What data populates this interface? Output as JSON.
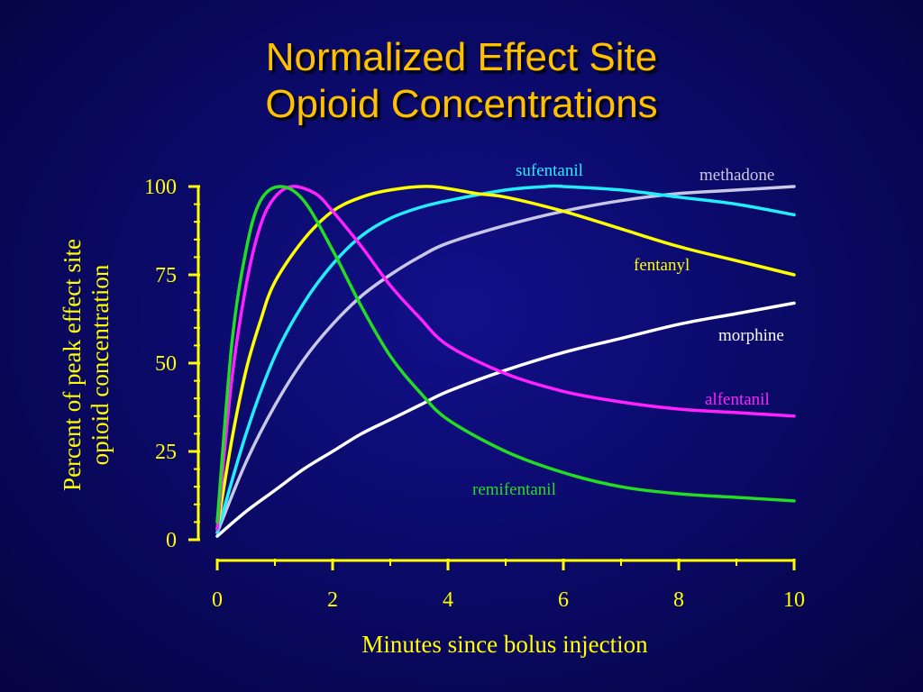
{
  "title_line1": "Normalized Effect Site",
  "title_line2": "Opioid Concentrations",
  "chart_data": {
    "type": "line",
    "title": "Normalized Effect Site Opioid Concentrations",
    "xlabel": "Minutes since bolus injection",
    "ylabel_line1": "Percent of peak effect site",
    "ylabel_line2": "opioid concentration",
    "xlim": [
      0,
      10
    ],
    "ylim": [
      0,
      100
    ],
    "x_ticks": [
      "0",
      "2",
      "4",
      "6",
      "8",
      "10"
    ],
    "y_ticks": [
      "0",
      "25",
      "50",
      "75",
      "100"
    ],
    "grid": false,
    "legend": "inline labels",
    "series": [
      {
        "name": "remifentanil",
        "color": "#22dd22",
        "points": [
          [
            0,
            5
          ],
          [
            0.25,
            55
          ],
          [
            0.5,
            82
          ],
          [
            0.75,
            96
          ],
          [
            1.1,
            100
          ],
          [
            1.5,
            96
          ],
          [
            2,
            82
          ],
          [
            2.5,
            66
          ],
          [
            3,
            52
          ],
          [
            3.5,
            42
          ],
          [
            4,
            34
          ],
          [
            5,
            25
          ],
          [
            6,
            19
          ],
          [
            7,
            15
          ],
          [
            8,
            13
          ],
          [
            9,
            12
          ],
          [
            10,
            11
          ]
        ]
      },
      {
        "name": "alfentanil",
        "color": "#ff22ff",
        "points": [
          [
            0,
            3
          ],
          [
            0.25,
            45
          ],
          [
            0.5,
            72
          ],
          [
            0.75,
            89
          ],
          [
            1,
            97
          ],
          [
            1.3,
            100
          ],
          [
            1.7,
            98
          ],
          [
            2,
            93
          ],
          [
            2.5,
            83
          ],
          [
            3,
            72
          ],
          [
            3.5,
            63
          ],
          [
            4,
            55
          ],
          [
            5,
            47
          ],
          [
            6,
            42
          ],
          [
            7,
            39
          ],
          [
            8,
            37
          ],
          [
            9,
            36
          ],
          [
            10,
            35
          ]
        ]
      },
      {
        "name": "fentanyl",
        "color": "#ffff00",
        "points": [
          [
            0,
            3
          ],
          [
            0.25,
            28
          ],
          [
            0.5,
            48
          ],
          [
            0.75,
            62
          ],
          [
            1,
            73
          ],
          [
            1.5,
            85
          ],
          [
            2,
            93
          ],
          [
            2.5,
            97
          ],
          [
            3,
            99
          ],
          [
            3.7,
            100
          ],
          [
            4.5,
            98
          ],
          [
            5,
            97
          ],
          [
            6,
            93
          ],
          [
            7,
            88
          ],
          [
            8,
            83
          ],
          [
            9,
            79
          ],
          [
            10,
            75
          ]
        ]
      },
      {
        "name": "sufentanil",
        "color": "#22eeff",
        "points": [
          [
            0,
            2
          ],
          [
            0.5,
            30
          ],
          [
            1,
            52
          ],
          [
            1.5,
            67
          ],
          [
            2,
            78
          ],
          [
            2.5,
            86
          ],
          [
            3,
            91
          ],
          [
            3.5,
            94
          ],
          [
            4,
            96
          ],
          [
            5,
            99
          ],
          [
            5.7,
            100
          ],
          [
            6,
            100
          ],
          [
            7,
            99
          ],
          [
            8,
            97
          ],
          [
            9,
            95
          ],
          [
            10,
            92
          ]
        ]
      },
      {
        "name": "methadone",
        "color": "#c8c8e6",
        "points": [
          [
            0,
            2
          ],
          [
            0.5,
            22
          ],
          [
            1,
            38
          ],
          [
            1.5,
            51
          ],
          [
            2,
            61
          ],
          [
            2.5,
            69
          ],
          [
            3,
            75
          ],
          [
            3.5,
            80
          ],
          [
            4,
            84
          ],
          [
            5,
            89
          ],
          [
            6,
            93
          ],
          [
            7,
            96
          ],
          [
            8,
            98
          ],
          [
            9,
            99
          ],
          [
            10,
            100
          ]
        ]
      },
      {
        "name": "morphine",
        "color": "#ffffff",
        "points": [
          [
            0,
            1
          ],
          [
            0.5,
            8
          ],
          [
            1,
            14
          ],
          [
            1.5,
            20
          ],
          [
            2,
            25
          ],
          [
            2.5,
            30
          ],
          [
            3,
            34
          ],
          [
            3.5,
            38
          ],
          [
            4,
            42
          ],
          [
            5,
            48
          ],
          [
            6,
            53
          ],
          [
            7,
            57
          ],
          [
            8,
            61
          ],
          [
            9,
            64
          ],
          [
            10,
            67
          ]
        ]
      }
    ]
  }
}
